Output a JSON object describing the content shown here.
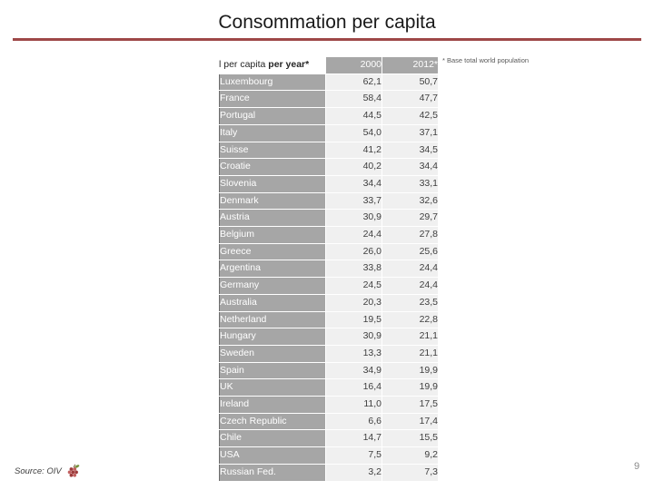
{
  "slide": {
    "title": "Consommation per capita",
    "source_label": "Source: OIV",
    "page_number": "9",
    "colors": {
      "accent": "#9e4848",
      "table_gray": "#a6a6a6"
    }
  },
  "chart_data": {
    "type": "table",
    "title": "Consommation per capita",
    "header": {
      "unit_label_normal": "l per capita ",
      "unit_label_bold": "per year*",
      "columns": [
        "2000",
        "2012*"
      ]
    },
    "footnote": "* Base total world population",
    "unit": "litres per capita per year",
    "rows": [
      [
        "Luxembourg",
        "62,1",
        "50,7"
      ],
      [
        "France",
        "58,4",
        "47,7"
      ],
      [
        "Portugal",
        "44,5",
        "42,5"
      ],
      [
        "Italy",
        "54,0",
        "37,1"
      ],
      [
        "Suisse",
        "41,2",
        "34,5"
      ],
      [
        "Croatie",
        "40,2",
        "34,4"
      ],
      [
        "Slovenia",
        "34,4",
        "33,1"
      ],
      [
        "Denmark",
        "33,7",
        "32,6"
      ],
      [
        "Austria",
        "30,9",
        "29,7"
      ],
      [
        "Belgium",
        "24,4",
        "27,8"
      ],
      [
        "Greece",
        "26,0",
        "25,6"
      ],
      [
        "Argentina",
        "33,8",
        "24,4"
      ],
      [
        "Germany",
        "24,5",
        "24,4"
      ],
      [
        "Australia",
        "20,3",
        "23,5"
      ],
      [
        "Netherland",
        "19,5",
        "22,8"
      ],
      [
        "Hungary",
        "30,9",
        "21,1"
      ],
      [
        "Sweden",
        "13,3",
        "21,1"
      ],
      [
        "Spain",
        "34,9",
        "19,9"
      ],
      [
        "UK",
        "16,4",
        "19,9"
      ],
      [
        "Ireland",
        "11,0",
        "17,5"
      ],
      [
        "Czech Republic",
        "6,6",
        "17,4"
      ],
      [
        "Chile",
        "14,7",
        "15,5"
      ],
      [
        "USA",
        "7,5",
        "9,2"
      ],
      [
        "Russian Fed.",
        "3,2",
        "7,3"
      ]
    ]
  }
}
